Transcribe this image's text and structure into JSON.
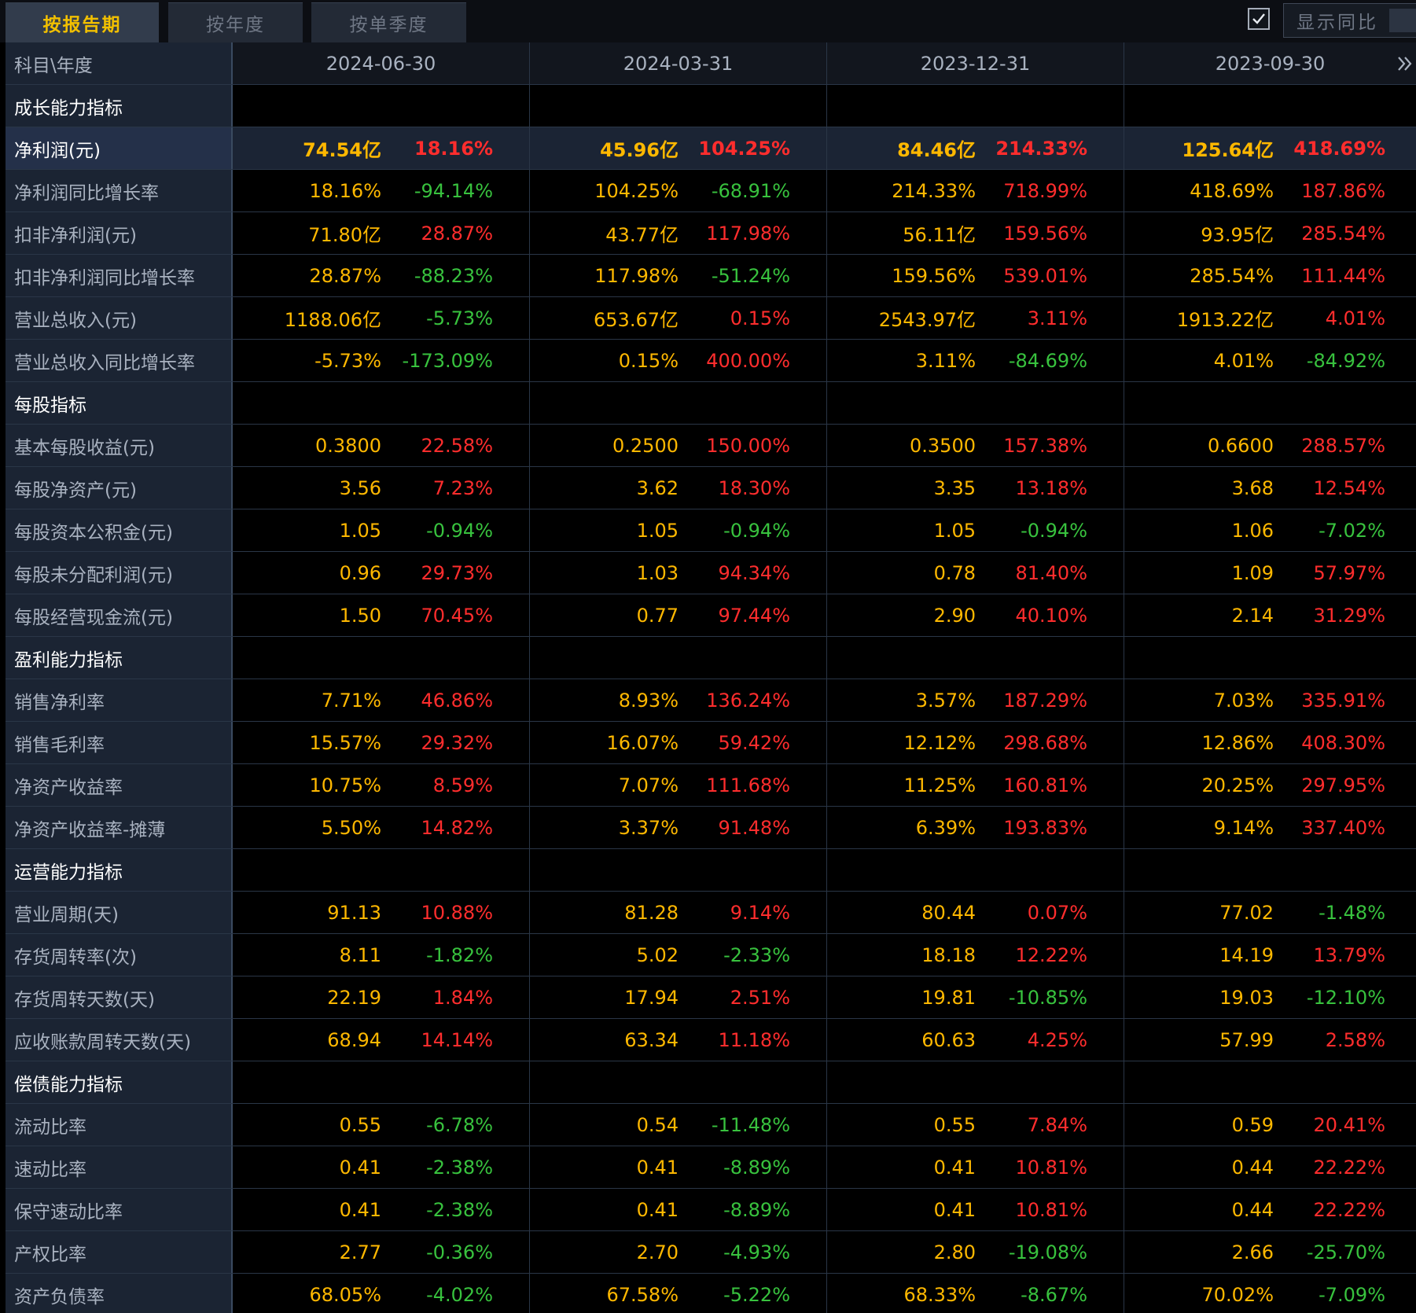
{
  "tabs": [
    "按报告期",
    "按年度",
    "按单季度"
  ],
  "active_tab": 0,
  "toggle": {
    "label": "显示同比",
    "checked": true
  },
  "header": {
    "label": "科目\\年度",
    "dates": [
      "2024-06-30",
      "2024-03-31",
      "2023-12-31",
      "2023-09-30"
    ]
  },
  "colors": {
    "value": "#ffb800",
    "up": "#ff2d2d",
    "down": "#38c23e",
    "accent": "#f2c000"
  },
  "rows": [
    {
      "type": "section",
      "label": "成长能力指标"
    },
    {
      "type": "data",
      "hl": true,
      "label": "净利润(元)",
      "cells": [
        [
          "74.54亿",
          "18.16%"
        ],
        [
          "45.96亿",
          "104.25%"
        ],
        [
          "84.46亿",
          "214.33%"
        ],
        [
          "125.64亿",
          "418.69%"
        ]
      ]
    },
    {
      "type": "data",
      "label": "净利润同比增长率",
      "cells": [
        [
          "18.16%",
          "-94.14%"
        ],
        [
          "104.25%",
          "-68.91%"
        ],
        [
          "214.33%",
          "718.99%"
        ],
        [
          "418.69%",
          "187.86%"
        ]
      ]
    },
    {
      "type": "data",
      "label": "扣非净利润(元)",
      "cells": [
        [
          "71.80亿",
          "28.87%"
        ],
        [
          "43.77亿",
          "117.98%"
        ],
        [
          "56.11亿",
          "159.56%"
        ],
        [
          "93.95亿",
          "285.54%"
        ]
      ]
    },
    {
      "type": "data",
      "label": "扣非净利润同比增长率",
      "cells": [
        [
          "28.87%",
          "-88.23%"
        ],
        [
          "117.98%",
          "-51.24%"
        ],
        [
          "159.56%",
          "539.01%"
        ],
        [
          "285.54%",
          "111.44%"
        ]
      ]
    },
    {
      "type": "data",
      "label": "营业总收入(元)",
      "cells": [
        [
          "1188.06亿",
          "-5.73%"
        ],
        [
          "653.67亿",
          "0.15%"
        ],
        [
          "2543.97亿",
          "3.11%"
        ],
        [
          "1913.22亿",
          "4.01%"
        ]
      ]
    },
    {
      "type": "data",
      "label": "营业总收入同比增长率",
      "cells": [
        [
          "-5.73%",
          "-173.09%"
        ],
        [
          "0.15%",
          "400.00%"
        ],
        [
          "3.11%",
          "-84.69%"
        ],
        [
          "4.01%",
          "-84.92%"
        ]
      ]
    },
    {
      "type": "section",
      "label": "每股指标"
    },
    {
      "type": "data",
      "label": "基本每股收益(元)",
      "cells": [
        [
          "0.3800",
          "22.58%"
        ],
        [
          "0.2500",
          "150.00%"
        ],
        [
          "0.3500",
          "157.38%"
        ],
        [
          "0.6600",
          "288.57%"
        ]
      ]
    },
    {
      "type": "data",
      "label": "每股净资产(元)",
      "cells": [
        [
          "3.56",
          "7.23%"
        ],
        [
          "3.62",
          "18.30%"
        ],
        [
          "3.35",
          "13.18%"
        ],
        [
          "3.68",
          "12.54%"
        ]
      ]
    },
    {
      "type": "data",
      "label": "每股资本公积金(元)",
      "cells": [
        [
          "1.05",
          "-0.94%"
        ],
        [
          "1.05",
          "-0.94%"
        ],
        [
          "1.05",
          "-0.94%"
        ],
        [
          "1.06",
          "-7.02%"
        ]
      ]
    },
    {
      "type": "data",
      "label": "每股未分配利润(元)",
      "cells": [
        [
          "0.96",
          "29.73%"
        ],
        [
          "1.03",
          "94.34%"
        ],
        [
          "0.78",
          "81.40%"
        ],
        [
          "1.09",
          "57.97%"
        ]
      ]
    },
    {
      "type": "data",
      "label": "每股经营现金流(元)",
      "cells": [
        [
          "1.50",
          "70.45%"
        ],
        [
          "0.77",
          "97.44%"
        ],
        [
          "2.90",
          "40.10%"
        ],
        [
          "2.14",
          "31.29%"
        ]
      ]
    },
    {
      "type": "section",
      "label": "盈利能力指标"
    },
    {
      "type": "data",
      "label": "销售净利率",
      "cells": [
        [
          "7.71%",
          "46.86%"
        ],
        [
          "8.93%",
          "136.24%"
        ],
        [
          "3.57%",
          "187.29%"
        ],
        [
          "7.03%",
          "335.91%"
        ]
      ]
    },
    {
      "type": "data",
      "label": "销售毛利率",
      "cells": [
        [
          "15.57%",
          "29.32%"
        ],
        [
          "16.07%",
          "59.42%"
        ],
        [
          "12.12%",
          "298.68%"
        ],
        [
          "12.86%",
          "408.30%"
        ]
      ]
    },
    {
      "type": "data",
      "label": "净资产收益率",
      "cells": [
        [
          "10.75%",
          "8.59%"
        ],
        [
          "7.07%",
          "111.68%"
        ],
        [
          "11.25%",
          "160.81%"
        ],
        [
          "20.25%",
          "297.95%"
        ]
      ]
    },
    {
      "type": "data",
      "label": "净资产收益率-摊薄",
      "cells": [
        [
          "5.50%",
          "14.82%"
        ],
        [
          "3.37%",
          "91.48%"
        ],
        [
          "6.39%",
          "193.83%"
        ],
        [
          "9.14%",
          "337.40%"
        ]
      ]
    },
    {
      "type": "section",
      "label": "运营能力指标"
    },
    {
      "type": "data",
      "label": "营业周期(天)",
      "cells": [
        [
          "91.13",
          "10.88%"
        ],
        [
          "81.28",
          "9.14%"
        ],
        [
          "80.44",
          "0.07%"
        ],
        [
          "77.02",
          "-1.48%"
        ]
      ]
    },
    {
      "type": "data",
      "label": "存货周转率(次)",
      "cells": [
        [
          "8.11",
          "-1.82%"
        ],
        [
          "5.02",
          "-2.33%"
        ],
        [
          "18.18",
          "12.22%"
        ],
        [
          "14.19",
          "13.79%"
        ]
      ]
    },
    {
      "type": "data",
      "label": "存货周转天数(天)",
      "cells": [
        [
          "22.19",
          "1.84%"
        ],
        [
          "17.94",
          "2.51%"
        ],
        [
          "19.81",
          "-10.85%"
        ],
        [
          "19.03",
          "-12.10%"
        ]
      ]
    },
    {
      "type": "data",
      "label": "应收账款周转天数(天)",
      "cells": [
        [
          "68.94",
          "14.14%"
        ],
        [
          "63.34",
          "11.18%"
        ],
        [
          "60.63",
          "4.25%"
        ],
        [
          "57.99",
          "2.58%"
        ]
      ]
    },
    {
      "type": "section",
      "label": "偿债能力指标"
    },
    {
      "type": "data",
      "label": "流动比率",
      "cells": [
        [
          "0.55",
          "-6.78%"
        ],
        [
          "0.54",
          "-11.48%"
        ],
        [
          "0.55",
          "7.84%"
        ],
        [
          "0.59",
          "20.41%"
        ]
      ]
    },
    {
      "type": "data",
      "label": "速动比率",
      "cells": [
        [
          "0.41",
          "-2.38%"
        ],
        [
          "0.41",
          "-8.89%"
        ],
        [
          "0.41",
          "10.81%"
        ],
        [
          "0.44",
          "22.22%"
        ]
      ]
    },
    {
      "type": "data",
      "label": "保守速动比率",
      "cells": [
        [
          "0.41",
          "-2.38%"
        ],
        [
          "0.41",
          "-8.89%"
        ],
        [
          "0.41",
          "10.81%"
        ],
        [
          "0.44",
          "22.22%"
        ]
      ]
    },
    {
      "type": "data",
      "label": "产权比率",
      "cells": [
        [
          "2.77",
          "-0.36%"
        ],
        [
          "2.70",
          "-4.93%"
        ],
        [
          "2.80",
          "-19.08%"
        ],
        [
          "2.66",
          "-25.70%"
        ]
      ]
    },
    {
      "type": "data",
      "label": "资产负债率",
      "cells": [
        [
          "68.05%",
          "-4.02%"
        ],
        [
          "67.58%",
          "-5.22%"
        ],
        [
          "68.33%",
          "-8.67%"
        ],
        [
          "70.02%",
          "-7.09%"
        ]
      ]
    }
  ]
}
